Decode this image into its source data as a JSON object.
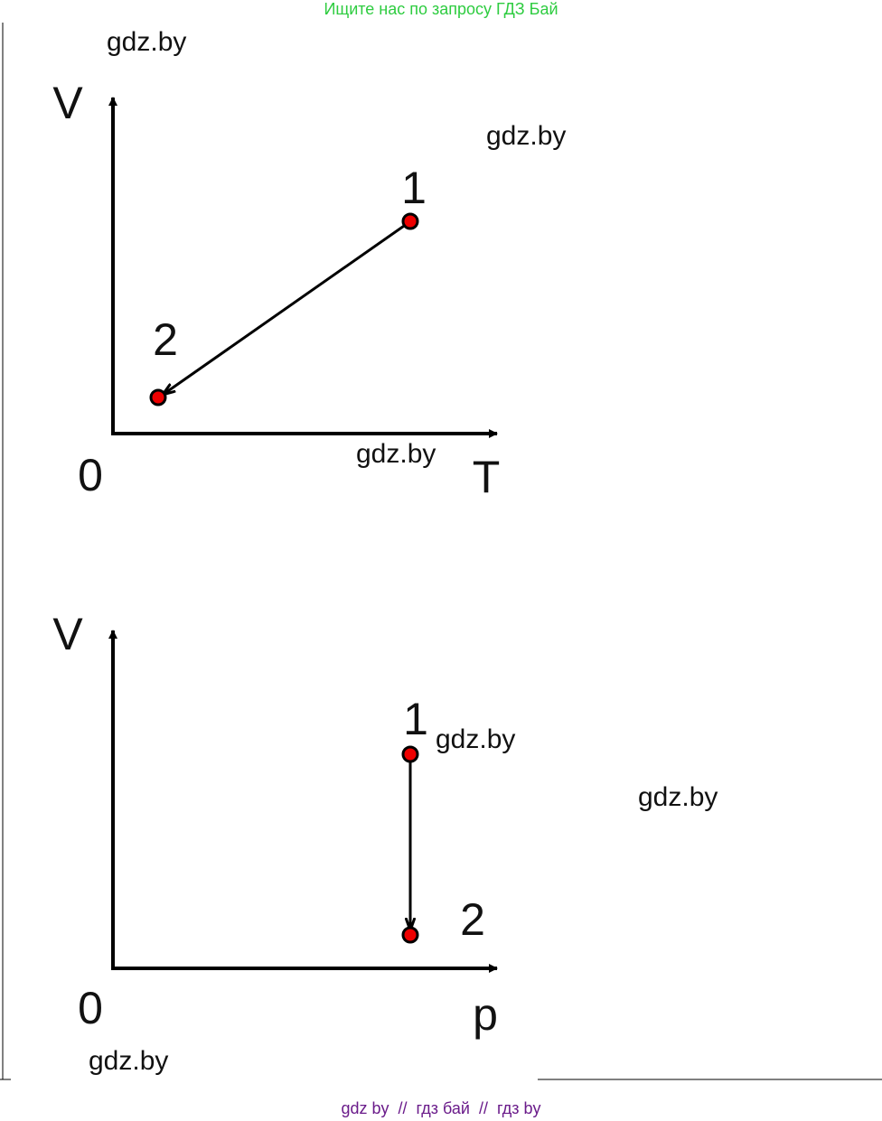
{
  "header": {
    "banner": "Ищите нас по запросу ГДЗ Бай"
  },
  "diagrams": [
    {
      "y_label": "V",
      "x_label": "T",
      "origin": "0",
      "points": [
        "1",
        "2"
      ]
    },
    {
      "y_label": "V",
      "x_label": "p",
      "origin": "0",
      "points": [
        "1",
        "2"
      ]
    }
  ],
  "watermarks": [
    "gdz.by",
    "gdz.by",
    "gdz.by",
    "gdz.by",
    "gdz.by",
    "gdz.by"
  ],
  "footer": "gdz by  //  гдз бай  //  гдз by"
}
